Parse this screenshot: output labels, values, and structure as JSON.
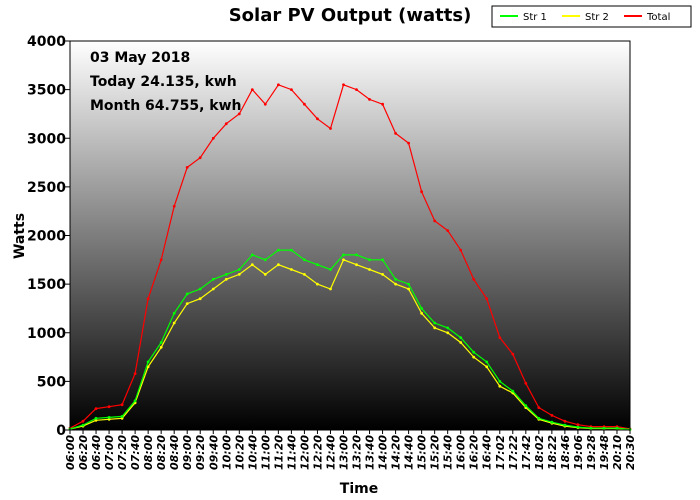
{
  "chart_data": {
    "type": "line",
    "title": "Solar PV Output (watts)",
    "xlabel": "Time",
    "ylabel": "Watts",
    "ylim": [
      0,
      4000
    ],
    "yticks": [
      "0",
      "500",
      "1000",
      "1500",
      "2000",
      "2500",
      "3000",
      "3500",
      "4000"
    ],
    "xticks": [
      "06:00",
      "06:20",
      "06:40",
      "07:00",
      "07:20",
      "07:40",
      "08:00",
      "08:20",
      "08:40",
      "09:00",
      "09:20",
      "09:40",
      "10:00",
      "10:20",
      "10:40",
      "11:00",
      "11:20",
      "11:40",
      "12:00",
      "12:20",
      "12:40",
      "13:00",
      "13:20",
      "13:40",
      "14:00",
      "14:20",
      "14:40",
      "15:00",
      "15:20",
      "15:40",
      "16:00",
      "16:20",
      "16:40",
      "17:02",
      "17:22",
      "17:42",
      "18:02",
      "18:22",
      "18:46",
      "19:06",
      "19:28",
      "19:48",
      "20:10",
      "20:30"
    ],
    "annotations": [
      "03 May 2018",
      "Today 24.135, kwh",
      "Month 64.755, kwh"
    ],
    "legend_position": "top-right",
    "series": [
      {
        "name": "Str 1",
        "color": "#00ff00",
        "x": [
          "06:00",
          "06:20",
          "06:40",
          "07:00",
          "07:20",
          "07:40",
          "08:00",
          "08:20",
          "08:40",
          "09:00",
          "09:20",
          "09:40",
          "10:00",
          "10:20",
          "10:40",
          "11:00",
          "11:20",
          "11:40",
          "12:00",
          "12:20",
          "12:40",
          "13:00",
          "13:20",
          "13:40",
          "14:00",
          "14:20",
          "14:40",
          "15:00",
          "15:20",
          "15:40",
          "16:00",
          "16:20",
          "16:40",
          "17:02",
          "17:22",
          "17:42",
          "18:02",
          "18:22",
          "18:46",
          "19:06",
          "19:28",
          "19:48",
          "20:10",
          "20:30"
        ],
        "values": [
          10,
          50,
          120,
          130,
          140,
          300,
          700,
          900,
          1200,
          1400,
          1450,
          1550,
          1600,
          1650,
          1800,
          1750,
          1850,
          1850,
          1750,
          1700,
          1650,
          1800,
          1800,
          1750,
          1750,
          1550,
          1500,
          1250,
          1100,
          1050,
          950,
          800,
          700,
          500,
          400,
          250,
          120,
          80,
          50,
          30,
          20,
          20,
          20,
          5
        ]
      },
      {
        "name": "Str 2",
        "color": "#ffff00",
        "x": [
          "06:00",
          "06:20",
          "06:40",
          "07:00",
          "07:20",
          "07:40",
          "08:00",
          "08:20",
          "08:40",
          "09:00",
          "09:20",
          "09:40",
          "10:00",
          "10:20",
          "10:40",
          "11:00",
          "11:20",
          "11:40",
          "12:00",
          "12:20",
          "12:40",
          "13:00",
          "13:20",
          "13:40",
          "14:00",
          "14:20",
          "14:40",
          "15:00",
          "15:20",
          "15:40",
          "16:00",
          "16:20",
          "16:40",
          "17:02",
          "17:22",
          "17:42",
          "18:02",
          "18:22",
          "18:46",
          "19:06",
          "19:28",
          "19:48",
          "20:10",
          "20:30"
        ],
        "values": [
          10,
          40,
          100,
          110,
          120,
          280,
          650,
          850,
          1100,
          1300,
          1350,
          1450,
          1550,
          1600,
          1700,
          1600,
          1700,
          1650,
          1600,
          1500,
          1450,
          1750,
          1700,
          1650,
          1600,
          1500,
          1450,
          1200,
          1050,
          1000,
          900,
          750,
          650,
          450,
          380,
          230,
          110,
          70,
          40,
          25,
          15,
          15,
          15,
          5
        ]
      },
      {
        "name": "Total",
        "color": "#ff0000",
        "x": [
          "06:00",
          "06:20",
          "06:40",
          "07:00",
          "07:20",
          "07:40",
          "08:00",
          "08:20",
          "08:40",
          "09:00",
          "09:20",
          "09:40",
          "10:00",
          "10:20",
          "10:40",
          "11:00",
          "11:20",
          "11:40",
          "12:00",
          "12:20",
          "12:40",
          "13:00",
          "13:20",
          "13:40",
          "14:00",
          "14:20",
          "14:40",
          "15:00",
          "15:20",
          "15:40",
          "16:00",
          "16:20",
          "16:40",
          "17:02",
          "17:22",
          "17:42",
          "18:02",
          "18:22",
          "18:46",
          "19:06",
          "19:28",
          "19:48",
          "20:10",
          "20:30"
        ],
        "values": [
          20,
          90,
          220,
          240,
          260,
          580,
          1350,
          1750,
          2300,
          2700,
          2800,
          3000,
          3150,
          3250,
          3500,
          3350,
          3550,
          3500,
          3350,
          3200,
          3100,
          3550,
          3500,
          3400,
          3350,
          3050,
          2950,
          2450,
          2150,
          2050,
          1850,
          1550,
          1350,
          950,
          780,
          480,
          230,
          150,
          90,
          55,
          35,
          35,
          35,
          10
        ]
      }
    ]
  }
}
